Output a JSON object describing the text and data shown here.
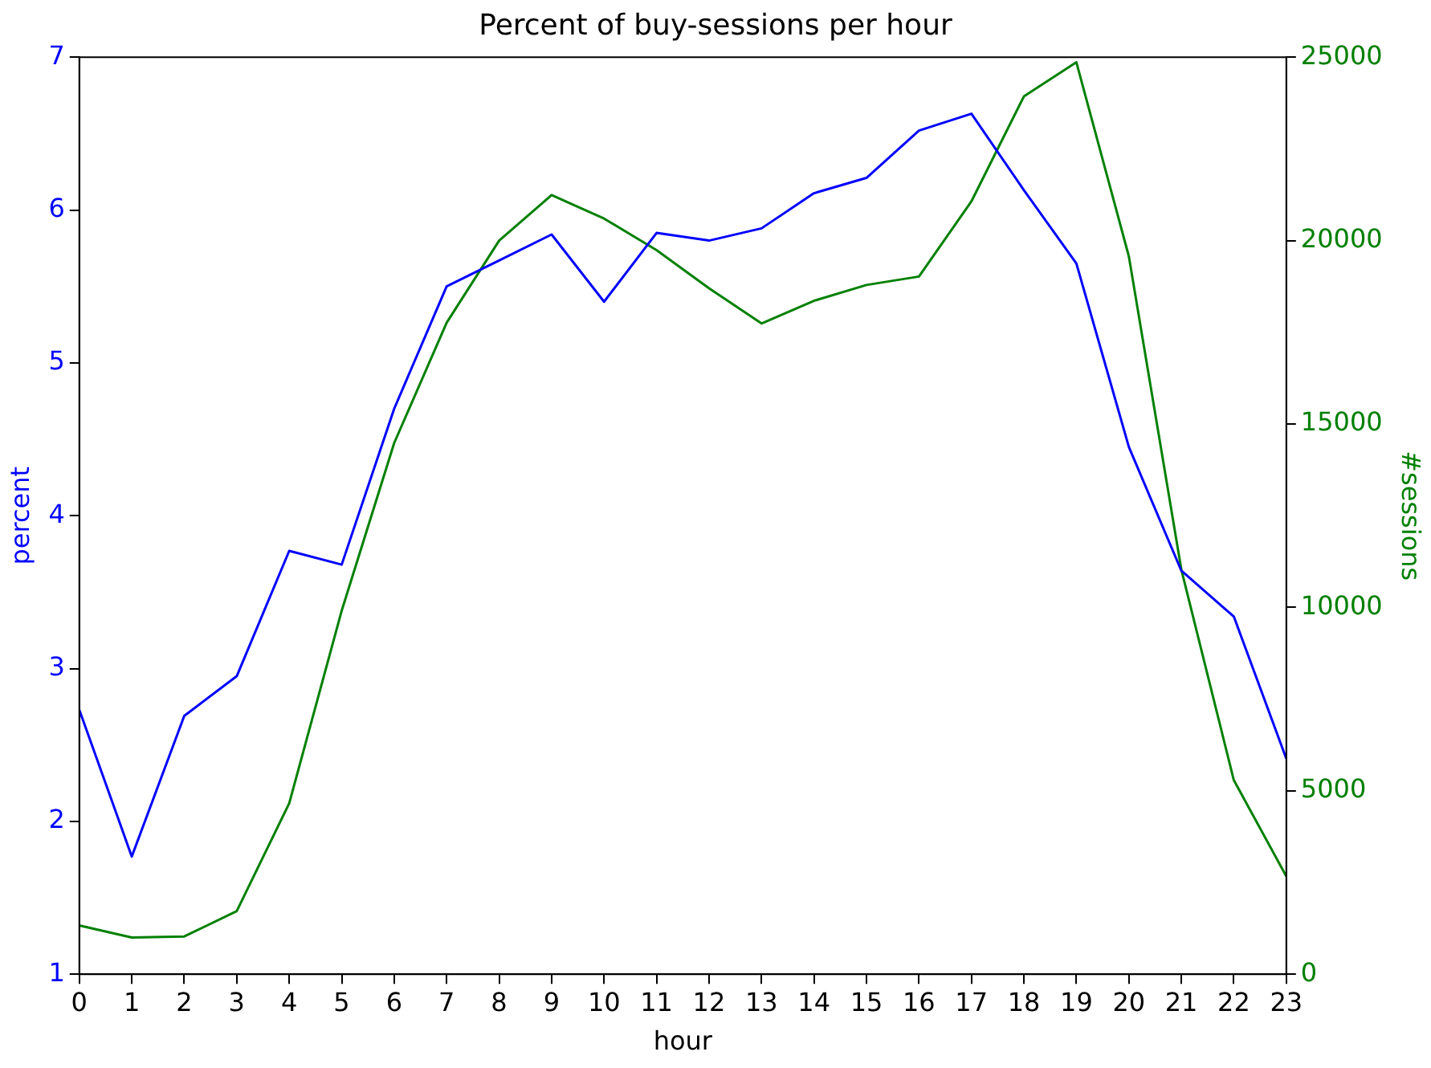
{
  "chart_data": {
    "type": "line",
    "title": "Percent of buy-sessions per hour",
    "xlabel": "hour",
    "ylabel": "percent",
    "y2label": "#sessions",
    "x": [
      0,
      1,
      2,
      3,
      4,
      5,
      6,
      7,
      8,
      9,
      10,
      11,
      12,
      13,
      14,
      15,
      16,
      17,
      18,
      19,
      20,
      21,
      22,
      23
    ],
    "xlim": [
      0,
      23
    ],
    "xticks": [
      0,
      1,
      2,
      3,
      4,
      5,
      6,
      7,
      8,
      9,
      10,
      11,
      12,
      13,
      14,
      15,
      16,
      17,
      18,
      19,
      20,
      21,
      22,
      23
    ],
    "ylim": [
      1,
      7
    ],
    "yticks": [
      1,
      2,
      3,
      4,
      5,
      6,
      7
    ],
    "y2lim": [
      0,
      25000
    ],
    "y2ticks": [
      0,
      5000,
      10000,
      15000,
      20000,
      25000
    ],
    "grid": false,
    "legend": false,
    "series": [
      {
        "color": "#0000ff",
        "values": [
          2.73,
          1.77,
          2.69,
          2.95,
          3.77,
          3.68,
          4.7,
          5.5,
          5.67,
          5.84,
          5.4,
          5.85,
          5.8,
          5.88,
          6.11,
          6.21,
          6.52,
          6.63,
          6.13,
          5.65,
          4.45,
          3.64,
          3.34,
          2.41
        ]
      },
      {
        "color": "#008000",
        "axis": "y2",
        "values": [
          1330,
          1000,
          1030,
          1720,
          4660,
          9910,
          14480,
          17760,
          20000,
          21240,
          20600,
          19740,
          18700,
          17740,
          18360,
          18790,
          19020,
          21070,
          23930,
          24860,
          19570,
          11030,
          5290,
          2670
        ]
      }
    ]
  }
}
